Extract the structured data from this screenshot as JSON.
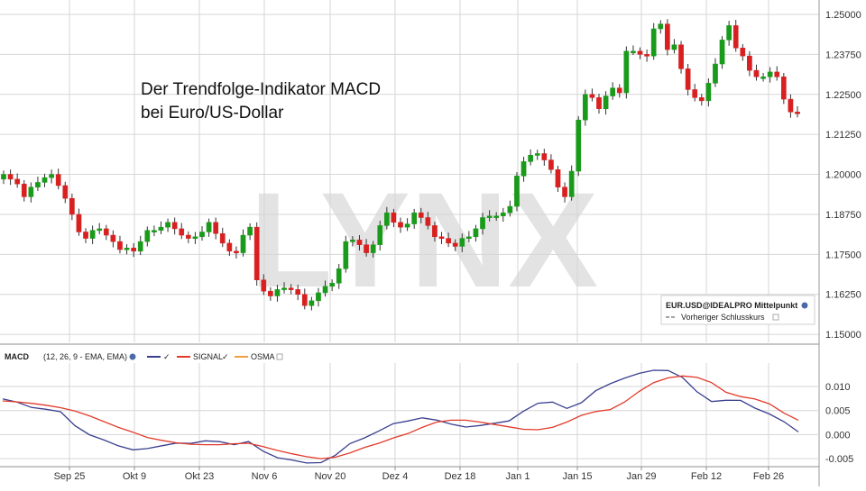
{
  "annotation": {
    "line1": "Der Trendfolge-Indikator MACD",
    "line2": "bei Euro/US-Dollar"
  },
  "watermark": "LYNX",
  "legend_box": {
    "symbol": "EUR.USD@IDEALPRO Mittelpunkt",
    "prev_close": "Vorheriger Schlusskurs"
  },
  "macd_header": {
    "title": "MACD",
    "params": "(12, 26, 9 - EMA, EMA)",
    "signal": "SIGNAL",
    "osma": "OSMA"
  },
  "colors": {
    "up": "#1a9a1a",
    "down": "#d92020",
    "macd": "#3a3f8f",
    "signal": "#e23a2a",
    "osma": "#f0a040",
    "grid": "#d6d6d6"
  },
  "chart_data": [
    {
      "type": "candlestick",
      "series_name": "EUR.USD@IDEALPRO Mittelpunkt",
      "y_ticks": [
        "1.15000",
        "1.16250",
        "1.17500",
        "1.18750",
        "1.20000",
        "1.21250",
        "1.22500",
        "1.23750",
        "1.25000"
      ],
      "ylim": [
        1.1475,
        1.2545
      ],
      "x_ticks": [
        "Sep 25",
        "Okt 9",
        "Okt 23",
        "Nov 6",
        "Nov 20",
        "Dez 4",
        "Dez 18",
        "Jan 1",
        "Jan 15",
        "Jan 29",
        "Feb 12",
        "Feb 26"
      ],
      "close": [
        1.2,
        1.1985,
        1.197,
        1.193,
        1.196,
        1.1975,
        1.199,
        1.2,
        1.1965,
        1.1925,
        1.1875,
        1.182,
        1.18,
        1.1825,
        1.183,
        1.181,
        1.179,
        1.1765,
        1.177,
        1.176,
        1.179,
        1.1825,
        1.1825,
        1.1835,
        1.185,
        1.183,
        1.181,
        1.18,
        1.1805,
        1.182,
        1.185,
        1.1815,
        1.1785,
        1.176,
        1.1755,
        1.181,
        1.1835,
        1.167,
        1.1635,
        1.162,
        1.164,
        1.1645,
        1.164,
        1.1625,
        1.159,
        1.1605,
        1.163,
        1.165,
        1.166,
        1.1705,
        1.179,
        1.1795,
        1.178,
        1.1755,
        1.178,
        1.184,
        1.188,
        1.185,
        1.1835,
        1.1845,
        1.188,
        1.1865,
        1.184,
        1.1805,
        1.18,
        1.1785,
        1.1775,
        1.18,
        1.1805,
        1.183,
        1.1865,
        1.187,
        1.187,
        1.188,
        1.19,
        1.1995,
        1.204,
        1.206,
        1.2065,
        1.2045,
        1.2015,
        1.196,
        1.193,
        1.201,
        1.217,
        1.225,
        1.224,
        1.2205,
        1.2245,
        1.227,
        1.2255,
        1.2385,
        1.2385,
        1.2375,
        1.237,
        1.2455,
        1.247,
        1.239,
        1.2405,
        1.233,
        1.2265,
        1.224,
        1.223,
        1.2285,
        1.2345,
        1.242,
        1.2465,
        1.2395,
        1.237,
        1.2325,
        1.2305,
        1.2305,
        1.232,
        1.2305,
        1.2235,
        1.2195,
        1.219
      ],
      "x_axis_label": "",
      "y_axis_label": ""
    },
    {
      "type": "line",
      "title": "MACD",
      "y_ticks": [
        "-0.005",
        "0.000",
        "0.005",
        "0.010"
      ],
      "ylim": [
        -0.0063,
        0.0145
      ],
      "series": [
        {
          "name": "SIGNAL",
          "values": [
            0.007,
            0.0068,
            0.0065,
            0.0061,
            0.0056,
            0.0049,
            0.0039,
            0.0027,
            0.0015,
            0.0005,
            -0.0006,
            -0.0012,
            -0.0017,
            -0.002,
            -0.0021,
            -0.0021,
            -0.0019,
            -0.0018,
            -0.0025,
            -0.0033,
            -0.004,
            -0.0046,
            -0.005,
            -0.0047,
            -0.0038,
            -0.0027,
            -0.0018,
            -0.0007,
            0.0002,
            0.0015,
            0.0026,
            0.003,
            0.003,
            0.0026,
            0.0021,
            0.0016,
            0.0011,
            0.001,
            0.0015,
            0.0026,
            0.004,
            0.0048,
            0.0052,
            0.0068,
            0.009,
            0.0108,
            0.0118,
            0.0122,
            0.0119,
            0.0108,
            0.0088,
            0.0079,
            0.0074,
            0.0064,
            0.0045,
            0.003
          ]
        }
      ]
    }
  ]
}
